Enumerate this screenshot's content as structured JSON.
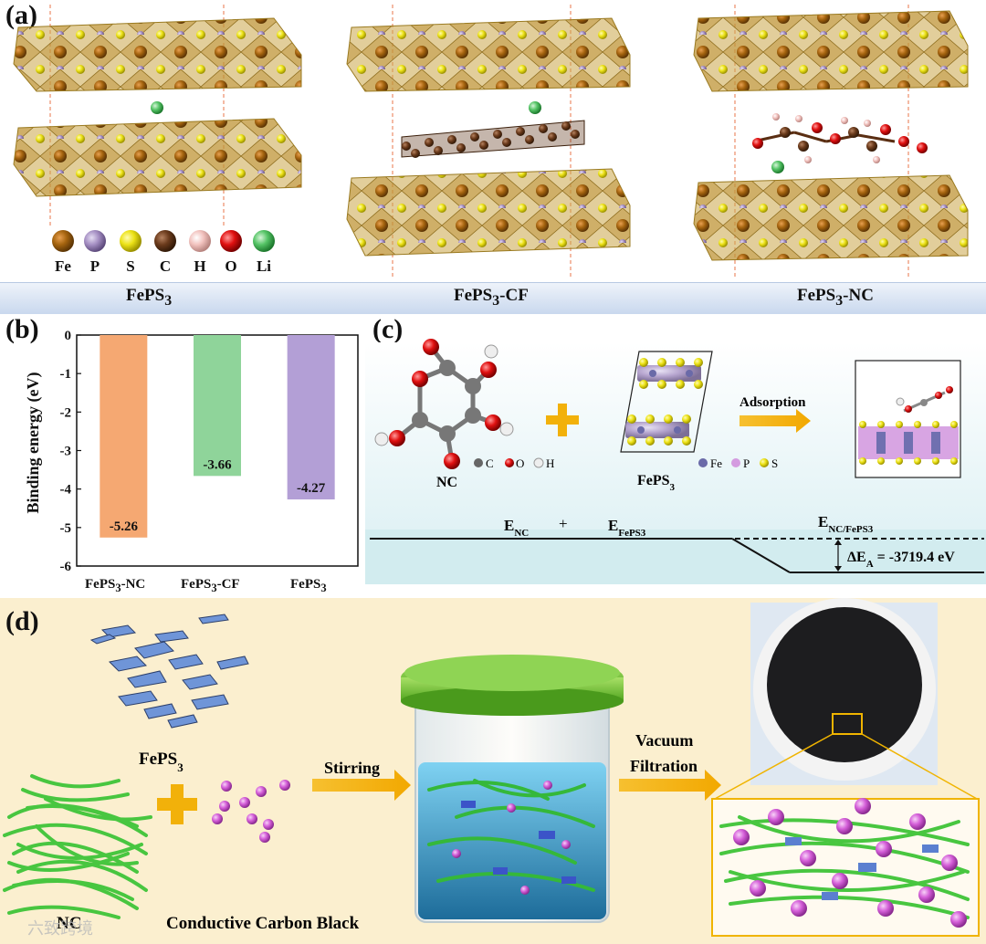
{
  "panel_a": {
    "label": "(a)",
    "legend": [
      {
        "symbol": "Fe",
        "color": "#9a5a12"
      },
      {
        "symbol": "P",
        "color": "#a38fbf"
      },
      {
        "symbol": "S",
        "color": "#e3d90b"
      },
      {
        "symbol": "C",
        "color": "#6a3b1c"
      },
      {
        "symbol": "H",
        "color": "#efb9b5"
      },
      {
        "symbol": "O",
        "color": "#e01010"
      },
      {
        "symbol": "Li",
        "color": "#4fc062"
      }
    ],
    "captions": {
      "left": {
        "main": "FePS",
        "sub": "3",
        "rest": ""
      },
      "middle": {
        "main": "FePS",
        "sub": "3",
        "rest": "-CF"
      },
      "right": {
        "main": "FePS",
        "sub": "3",
        "rest": "-NC"
      }
    }
  },
  "panel_b": {
    "label": "(b)",
    "chart_data": {
      "type": "bar",
      "categories": [
        "FePS3-NC",
        "FePS3-CF",
        "FePS3"
      ],
      "values": [
        -5.26,
        -3.66,
        -4.27
      ],
      "value_labels": [
        "-5.26",
        "-3.66",
        "-4.27"
      ],
      "colors": [
        "#f5a872",
        "#8fd49a",
        "#b39fd6"
      ],
      "ylabel": "Binding energy (eV)",
      "ylim": [
        -6,
        0
      ],
      "yticks": [
        "0",
        "-1",
        "-2",
        "-3",
        "-4",
        "-5",
        "-6"
      ]
    }
  },
  "panel_c": {
    "label": "(c)",
    "nc_label": "NC",
    "feps3_label": "FePS",
    "feps3_sub": "3",
    "arrow_label": "Adsorption",
    "nc_legend": [
      "C",
      "O",
      "H"
    ],
    "feps3_legend": [
      "Fe",
      "P",
      "S"
    ],
    "energy": {
      "e_nc": "E",
      "e_nc_sub": "NC",
      "plus": "+",
      "e_feps3": "E",
      "e_feps3_sub": "FePS3",
      "e_combined": "E",
      "e_combined_sub": "NC/FePS3",
      "delta": "ΔE",
      "delta_sub": "A",
      "delta_value": " = -3719.4 eV"
    }
  },
  "panel_d": {
    "label": "(d)",
    "feps3_label": "FePS",
    "feps3_sub": "3",
    "nc_label": "NC",
    "carbon_black_label": "Conductive Carbon Black",
    "step1": "Stirring",
    "step2_line1": "Vacuum",
    "step2_line2": "Filtration",
    "watermark": "六致跨境"
  }
}
